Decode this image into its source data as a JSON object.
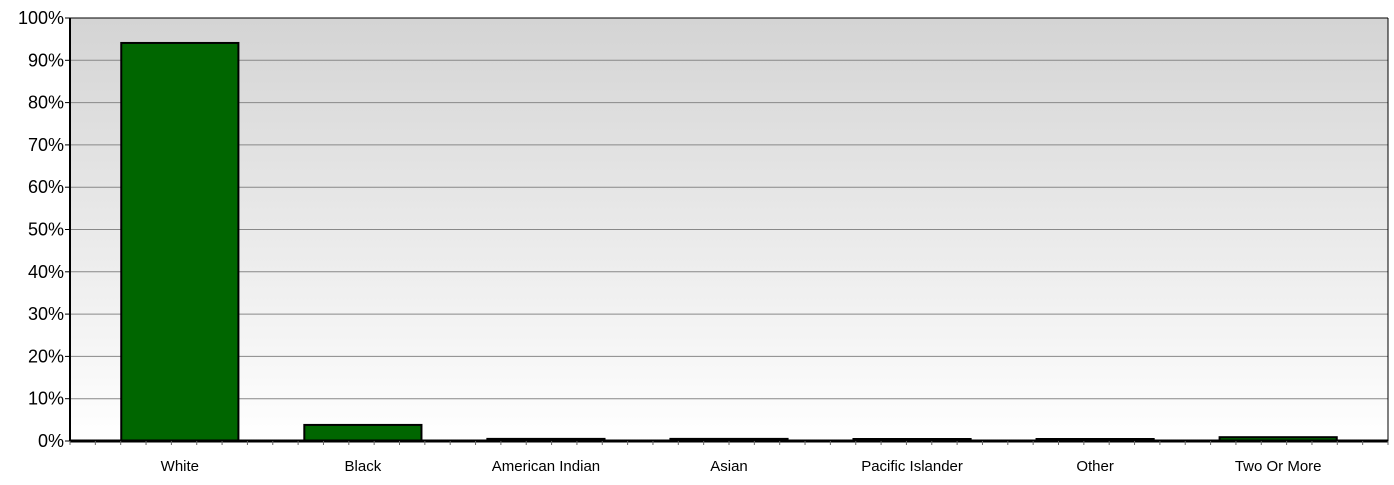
{
  "chart_data": {
    "type": "bar",
    "categories": [
      "White",
      "Black",
      "American Indian",
      "Asian",
      "Pacific Islander",
      "Other",
      "Two Or More"
    ],
    "values": [
      94.1,
      3.8,
      0.5,
      0.5,
      0.1,
      0.1,
      0.9
    ],
    "unit": "%",
    "ylim": [
      0,
      100
    ],
    "yticks": [
      0,
      10,
      20,
      30,
      40,
      50,
      60,
      70,
      80,
      90,
      100
    ],
    "ytick_labels": [
      "0%",
      "10%",
      "20%",
      "30%",
      "40%",
      "50%",
      "60%",
      "70%",
      "80%",
      "90%",
      "100%"
    ],
    "title": "",
    "xlabel": "",
    "ylabel": "",
    "grid": true,
    "legend": "none"
  },
  "colors": {
    "bar_fill": "#006600",
    "bar_stroke": "#000000",
    "plot_bg_top": "#d4d4d4",
    "plot_bg_bottom": "#ffffff",
    "grid": "#888888",
    "axis": "#000000"
  }
}
